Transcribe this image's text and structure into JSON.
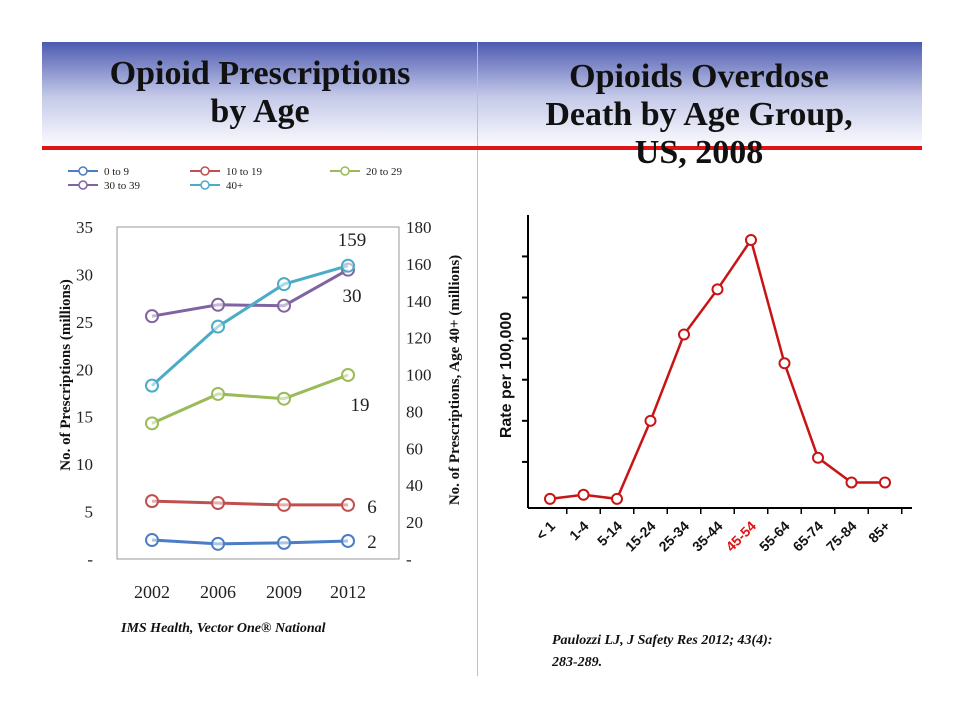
{
  "left_panel": {
    "title_line1": "Opioid Prescriptions",
    "title_line2": "by Age",
    "source": "IMS Health, Vector One® National"
  },
  "right_panel": {
    "title_line1": "Opioids Overdose",
    "title_line2": "Death by Age Group,",
    "title_line3": "US, 2008",
    "source_line1": "Paulozzi LJ, J Safety Res 2012; 43(4):",
    "source_line2": "283-289."
  },
  "colors": {
    "header_top": "#4d5bb0",
    "red_line": "#e01414",
    "death_line": "#c81414",
    "highlight_label": "#e01414"
  },
  "chart_data": [
    {
      "type": "line",
      "x": [
        "2002",
        "2006",
        "2009",
        "2012"
      ],
      "ylabel": "No. of Prescriptions (millions)",
      "y2label": "No. of Prescriptions, Age 40+ (millions)",
      "ylim": [
        0,
        35
      ],
      "y2lim": [
        0,
        180
      ],
      "yticks": [
        "-",
        "5",
        "10",
        "15",
        "20",
        "25",
        "30",
        "35"
      ],
      "y2ticks": [
        "-",
        "20",
        "40",
        "60",
        "80",
        "100",
        "120",
        "140",
        "160",
        "180"
      ],
      "legend_position": "top",
      "grid": false,
      "series": [
        {
          "name": "0 to 9",
          "axis": "left",
          "color": "#4a7dc4",
          "values": [
            2.0,
            1.6,
            1.7,
            1.9
          ]
        },
        {
          "name": "10 to 19",
          "axis": "left",
          "color": "#c0504d",
          "values": [
            6.1,
            5.9,
            5.7,
            5.7
          ]
        },
        {
          "name": "20 to 29",
          "axis": "left",
          "color": "#9bbb59",
          "values": [
            14.3,
            17.4,
            16.9,
            19.4
          ]
        },
        {
          "name": "30 to 39",
          "axis": "left",
          "color": "#8064a2",
          "values": [
            25.6,
            26.8,
            26.7,
            30.5
          ]
        },
        {
          "name": "40+",
          "axis": "right",
          "color": "#4bacc6",
          "values": [
            94,
            126,
            149,
            159
          ]
        }
      ],
      "annotations": [
        "159",
        "30",
        "19",
        "6",
        "2"
      ]
    },
    {
      "type": "line",
      "categories": [
        "< 1",
        "1-4",
        "5-14",
        "15-24",
        "25-34",
        "35-44",
        "45-54",
        "55-64",
        "65-74",
        "75-84",
        "85+"
      ],
      "values": [
        1,
        2,
        1,
        20,
        41,
        52,
        64,
        34,
        11,
        5,
        5
      ],
      "ylabel": "Rate per 100,000",
      "ylim": [
        0,
        64
      ],
      "highlight_category": "45-54",
      "grid": false
    }
  ]
}
